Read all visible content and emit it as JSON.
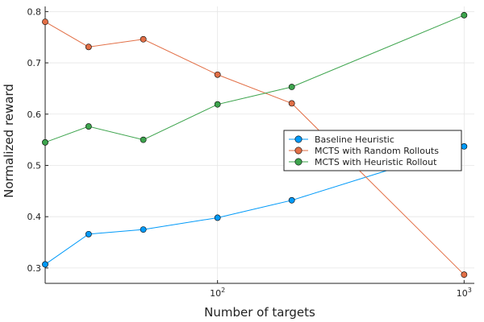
{
  "chart_data": {
    "type": "line",
    "xlabel": "Number of targets",
    "ylabel": "Normalized reward",
    "xscale": "log10",
    "xlim": [
      20,
      1100
    ],
    "ylim": [
      0.27,
      0.81
    ],
    "yticks": [
      0.3,
      0.4,
      0.5,
      0.6,
      0.7,
      0.8
    ],
    "ytick_labels": [
      "0.3",
      "0.4",
      "0.5",
      "0.6",
      "0.7",
      "0.8"
    ],
    "xticks": [
      100,
      1000
    ],
    "xtick_labels": [
      {
        "base": "10",
        "exp": "2"
      },
      {
        "base": "10",
        "exp": "3"
      }
    ],
    "grid": true,
    "legend_position": "right",
    "x": [
      20,
      30,
      50,
      100,
      200,
      1000
    ],
    "series": [
      {
        "name": "Baseline Heuristic",
        "color": "#009af9",
        "values": [
          0.307,
          0.366,
          0.375,
          0.398,
          0.432,
          0.537
        ]
      },
      {
        "name": "MCTS with Random Rollouts",
        "color": "#e26f46",
        "values": [
          0.78,
          0.731,
          0.746,
          0.677,
          0.621,
          0.287
        ]
      },
      {
        "name": "MCTS with Heuristic Rollout",
        "color": "#3da44d",
        "values": [
          0.545,
          0.576,
          0.55,
          0.619,
          0.653,
          0.793
        ]
      }
    ]
  }
}
